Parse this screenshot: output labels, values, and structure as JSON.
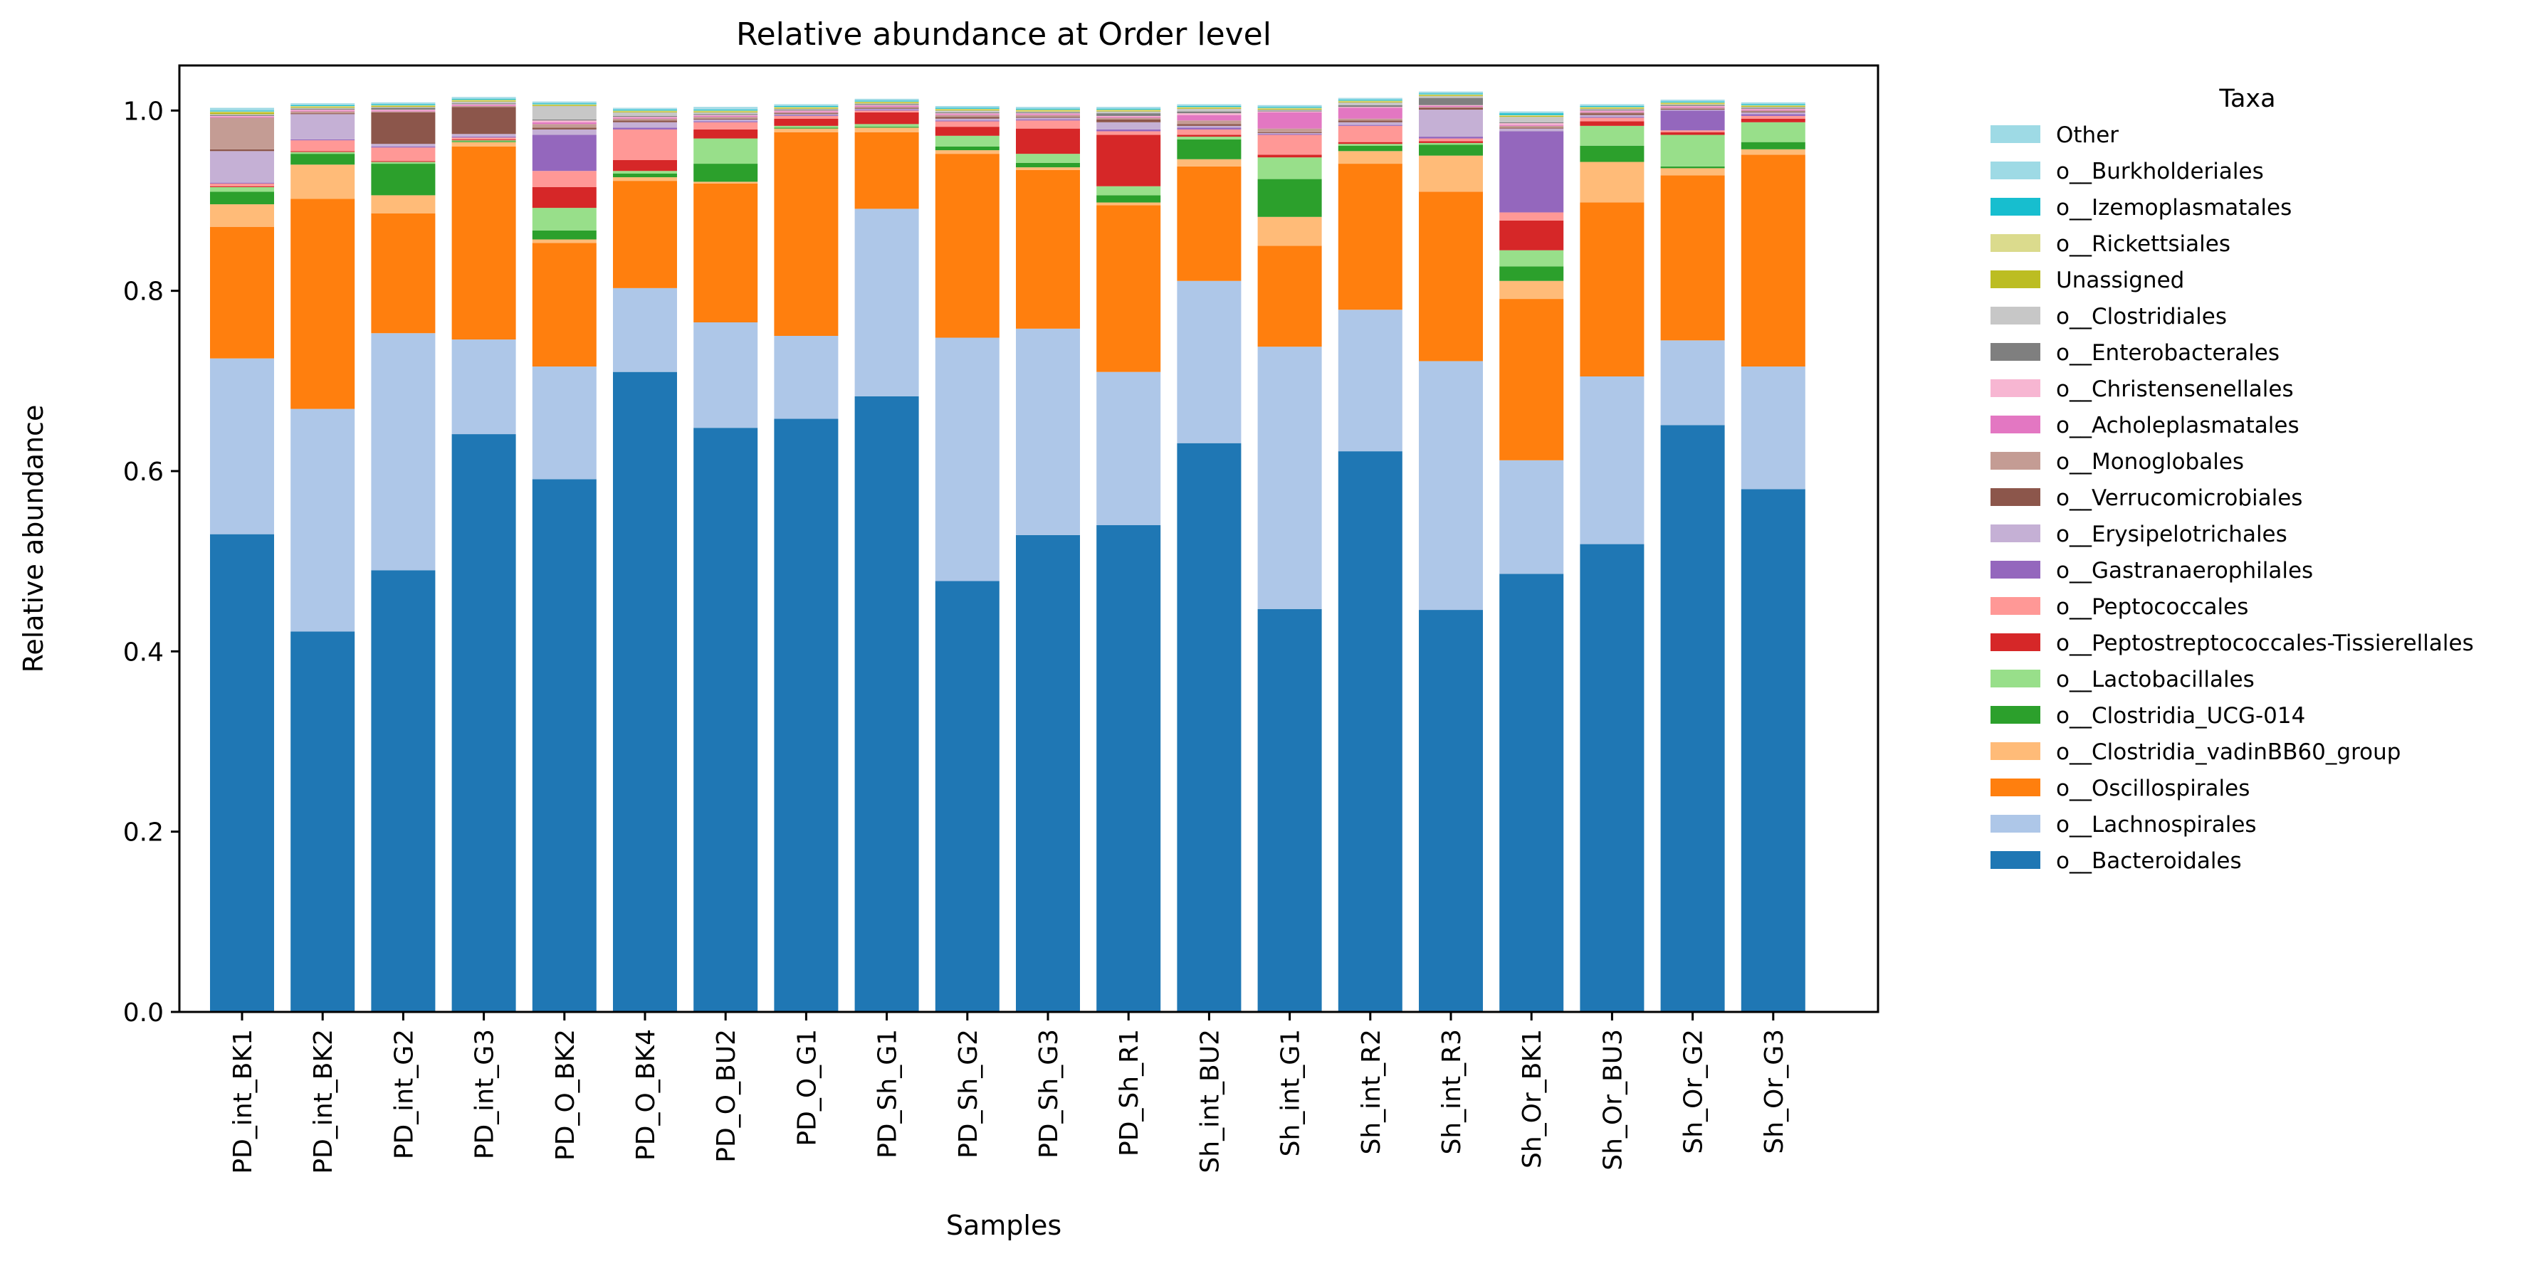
{
  "chart_data": {
    "type": "bar",
    "stacked": true,
    "title": "Relative abundance at Order level",
    "xlabel": "Samples",
    "ylabel": "Relative abundance",
    "ylim": [
      0,
      1.05
    ],
    "yticks": [
      "0.0",
      "0.2",
      "0.4",
      "0.6",
      "0.8",
      "1.0"
    ],
    "grid": false,
    "legend_title": "Taxa",
    "legend_position": "outside-right",
    "categories": [
      "PD_int_BK1",
      "PD_int_BK2",
      "PD_int_G2",
      "PD_int_G3",
      "PD_O_BK2",
      "PD_O_BK4",
      "PD_O_BU2",
      "PD_O_G1",
      "PD_Sh_G1",
      "PD_Sh_G2",
      "PD_Sh_G3",
      "PD_Sh_R1",
      "Sh_int_BU2",
      "Sh_int_G1",
      "Sh_int_R2",
      "Sh_int_R3",
      "Sh_Or_BK1",
      "Sh_Or_BU3",
      "Sh_Or_G2",
      "Sh_Or_G3"
    ],
    "series": [
      {
        "name": "o__Bacteroidales",
        "color": "#1f77b4",
        "values": [
          0.53,
          0.422,
          0.49,
          0.641,
          0.591,
          0.71,
          0.648,
          0.658,
          0.683,
          0.478,
          0.529,
          0.54,
          0.631,
          0.447,
          0.622,
          0.446,
          0.486,
          0.519,
          0.651,
          0.58
        ]
      },
      {
        "name": "o__Lachnospirales",
        "color": "#aec7e8",
        "values": [
          0.195,
          0.247,
          0.263,
          0.105,
          0.125,
          0.093,
          0.117,
          0.092,
          0.208,
          0.27,
          0.229,
          0.17,
          0.18,
          0.291,
          0.157,
          0.276,
          0.126,
          0.186,
          0.094,
          0.136
        ]
      },
      {
        "name": "o__Oscillospirales",
        "color": "#ff7f0e",
        "values": [
          0.146,
          0.233,
          0.133,
          0.214,
          0.137,
          0.119,
          0.154,
          0.226,
          0.085,
          0.204,
          0.176,
          0.185,
          0.127,
          0.112,
          0.162,
          0.188,
          0.179,
          0.193,
          0.183,
          0.235
        ]
      },
      {
        "name": "o__Clostridia_vadinBB60_group",
        "color": "#ffbb78",
        "values": [
          0.025,
          0.038,
          0.02,
          0.005,
          0.004,
          0.004,
          0.002,
          0.004,
          0.005,
          0.004,
          0.003,
          0.003,
          0.008,
          0.032,
          0.014,
          0.04,
          0.02,
          0.045,
          0.008,
          0.006
        ]
      },
      {
        "name": "o__Clostridia_UCG-014",
        "color": "#2ca02c",
        "values": [
          0.014,
          0.012,
          0.035,
          0.001,
          0.01,
          0.004,
          0.02,
          0.001,
          0.001,
          0.004,
          0.005,
          0.008,
          0.022,
          0.042,
          0.006,
          0.012,
          0.016,
          0.018,
          0.002,
          0.008
        ]
      },
      {
        "name": "o__Lactobacillales",
        "color": "#98df8a",
        "values": [
          0.005,
          0.002,
          0.002,
          0.001,
          0.025,
          0.003,
          0.028,
          0.002,
          0.003,
          0.012,
          0.01,
          0.01,
          0.003,
          0.024,
          0.002,
          0.002,
          0.018,
          0.022,
          0.035,
          0.022
        ]
      },
      {
        "name": "o__Peptostreptococcales-Tissierellales",
        "color": "#d62728",
        "values": [
          0.001,
          0.001,
          0.001,
          0.001,
          0.023,
          0.012,
          0.01,
          0.008,
          0.013,
          0.01,
          0.028,
          0.057,
          0.002,
          0.003,
          0.002,
          0.002,
          0.033,
          0.005,
          0.003,
          0.004
        ]
      },
      {
        "name": "o__Peptococcales",
        "color": "#ff9896",
        "values": [
          0.003,
          0.012,
          0.015,
          0.002,
          0.018,
          0.034,
          0.008,
          0.003,
          0.002,
          0.006,
          0.009,
          0.004,
          0.006,
          0.022,
          0.018,
          0.003,
          0.009,
          0.004,
          0.002,
          0.003
        ]
      },
      {
        "name": "o__Gastranaerophilales",
        "color": "#9467bd",
        "values": [
          0.001,
          0.001,
          0.001,
          0.001,
          0.04,
          0.002,
          0.001,
          0.001,
          0.001,
          0.001,
          0.001,
          0.002,
          0.002,
          0.001,
          0.001,
          0.002,
          0.09,
          0.001,
          0.022,
          0.002
        ]
      },
      {
        "name": "o__Erysipelotrichales",
        "color": "#c5b0d5",
        "values": [
          0.035,
          0.028,
          0.003,
          0.003,
          0.006,
          0.006,
          0.002,
          0.001,
          0.001,
          0.002,
          0.002,
          0.008,
          0.002,
          0.001,
          0.003,
          0.03,
          0.003,
          0.002,
          0.001,
          0.002
        ]
      },
      {
        "name": "o__Verrucomicrobiales",
        "color": "#8c564b",
        "values": [
          0.002,
          0.001,
          0.035,
          0.03,
          0.002,
          0.002,
          0.001,
          0.001,
          0.001,
          0.002,
          0.001,
          0.003,
          0.002,
          0.001,
          0.002,
          0.002,
          0.001,
          0.002,
          0.001,
          0.001
        ]
      },
      {
        "name": "o__Monoglobales",
        "color": "#c49c94",
        "values": [
          0.035,
          0.002,
          0.001,
          0.001,
          0.004,
          0.002,
          0.002,
          0.001,
          0.001,
          0.002,
          0.002,
          0.002,
          0.004,
          0.004,
          0.002,
          0.001,
          0.002,
          0.001,
          0.001,
          0.001
        ]
      },
      {
        "name": "o__Acholeplasmatales",
        "color": "#e377c2",
        "values": [
          0.001,
          0.001,
          0.001,
          0.001,
          0.002,
          0.001,
          0.001,
          0.001,
          0.001,
          0.001,
          0.001,
          0.001,
          0.006,
          0.018,
          0.012,
          0.001,
          0.001,
          0.001,
          0.001,
          0.001
        ]
      },
      {
        "name": "o__Christensenellales",
        "color": "#f7b6d2",
        "values": [
          0.001,
          0.001,
          0.001,
          0.001,
          0.002,
          0.001,
          0.001,
          0.001,
          0.001,
          0.001,
          0.001,
          0.001,
          0.002,
          0.001,
          0.001,
          0.001,
          0.002,
          0.001,
          0.001,
          0.001
        ]
      },
      {
        "name": "o__Enterobacterales",
        "color": "#7f7f7f",
        "values": [
          0.001,
          0.001,
          0.002,
          0.001,
          0.001,
          0.001,
          0.001,
          0.001,
          0.001,
          0.001,
          0.001,
          0.003,
          0.002,
          0.001,
          0.002,
          0.008,
          0.001,
          0.001,
          0.001,
          0.001
        ]
      },
      {
        "name": "o__Clostridiales",
        "color": "#c7c7c7",
        "values": [
          0.001,
          0.001,
          0.001,
          0.002,
          0.015,
          0.004,
          0.002,
          0.001,
          0.001,
          0.002,
          0.001,
          0.002,
          0.003,
          0.001,
          0.003,
          0.002,
          0.006,
          0.001,
          0.001,
          0.001
        ]
      },
      {
        "name": "Unassigned",
        "color": "#bcbd22",
        "values": [
          0.002,
          0.001,
          0.001,
          0.001,
          0.001,
          0.001,
          0.001,
          0.001,
          0.001,
          0.001,
          0.001,
          0.001,
          0.001,
          0.001,
          0.001,
          0.001,
          0.001,
          0.001,
          0.001,
          0.001
        ]
      },
      {
        "name": "o__Rickettsiales",
        "color": "#dbdb8d",
        "values": [
          0.001,
          0.001,
          0.001,
          0.001,
          0.001,
          0.001,
          0.001,
          0.001,
          0.001,
          0.001,
          0.001,
          0.001,
          0.001,
          0.001,
          0.001,
          0.001,
          0.001,
          0.001,
          0.001,
          0.001
        ]
      },
      {
        "name": "o__Izemoplasmatales",
        "color": "#17becf",
        "values": [
          0.001,
          0.001,
          0.001,
          0.001,
          0.001,
          0.001,
          0.001,
          0.001,
          0.001,
          0.001,
          0.001,
          0.001,
          0.001,
          0.001,
          0.001,
          0.001,
          0.002,
          0.001,
          0.001,
          0.001
        ]
      },
      {
        "name": "o__Burkholderiales",
        "color": "#9edae5",
        "values": [
          0.001,
          0.001,
          0.001,
          0.001,
          0.001,
          0.001,
          0.001,
          0.001,
          0.001,
          0.001,
          0.001,
          0.001,
          0.001,
          0.001,
          0.001,
          0.001,
          0.001,
          0.001,
          0.001,
          0.001
        ]
      },
      {
        "name": "Other",
        "color": "#9edae5",
        "values": [
          0.002,
          0.001,
          0.001,
          0.001,
          0.001,
          0.001,
          0.002,
          0.001,
          0.001,
          0.001,
          0.001,
          0.001,
          0.001,
          0.001,
          0.001,
          0.001,
          0.001,
          0.001,
          0.001,
          0.001
        ]
      }
    ]
  }
}
